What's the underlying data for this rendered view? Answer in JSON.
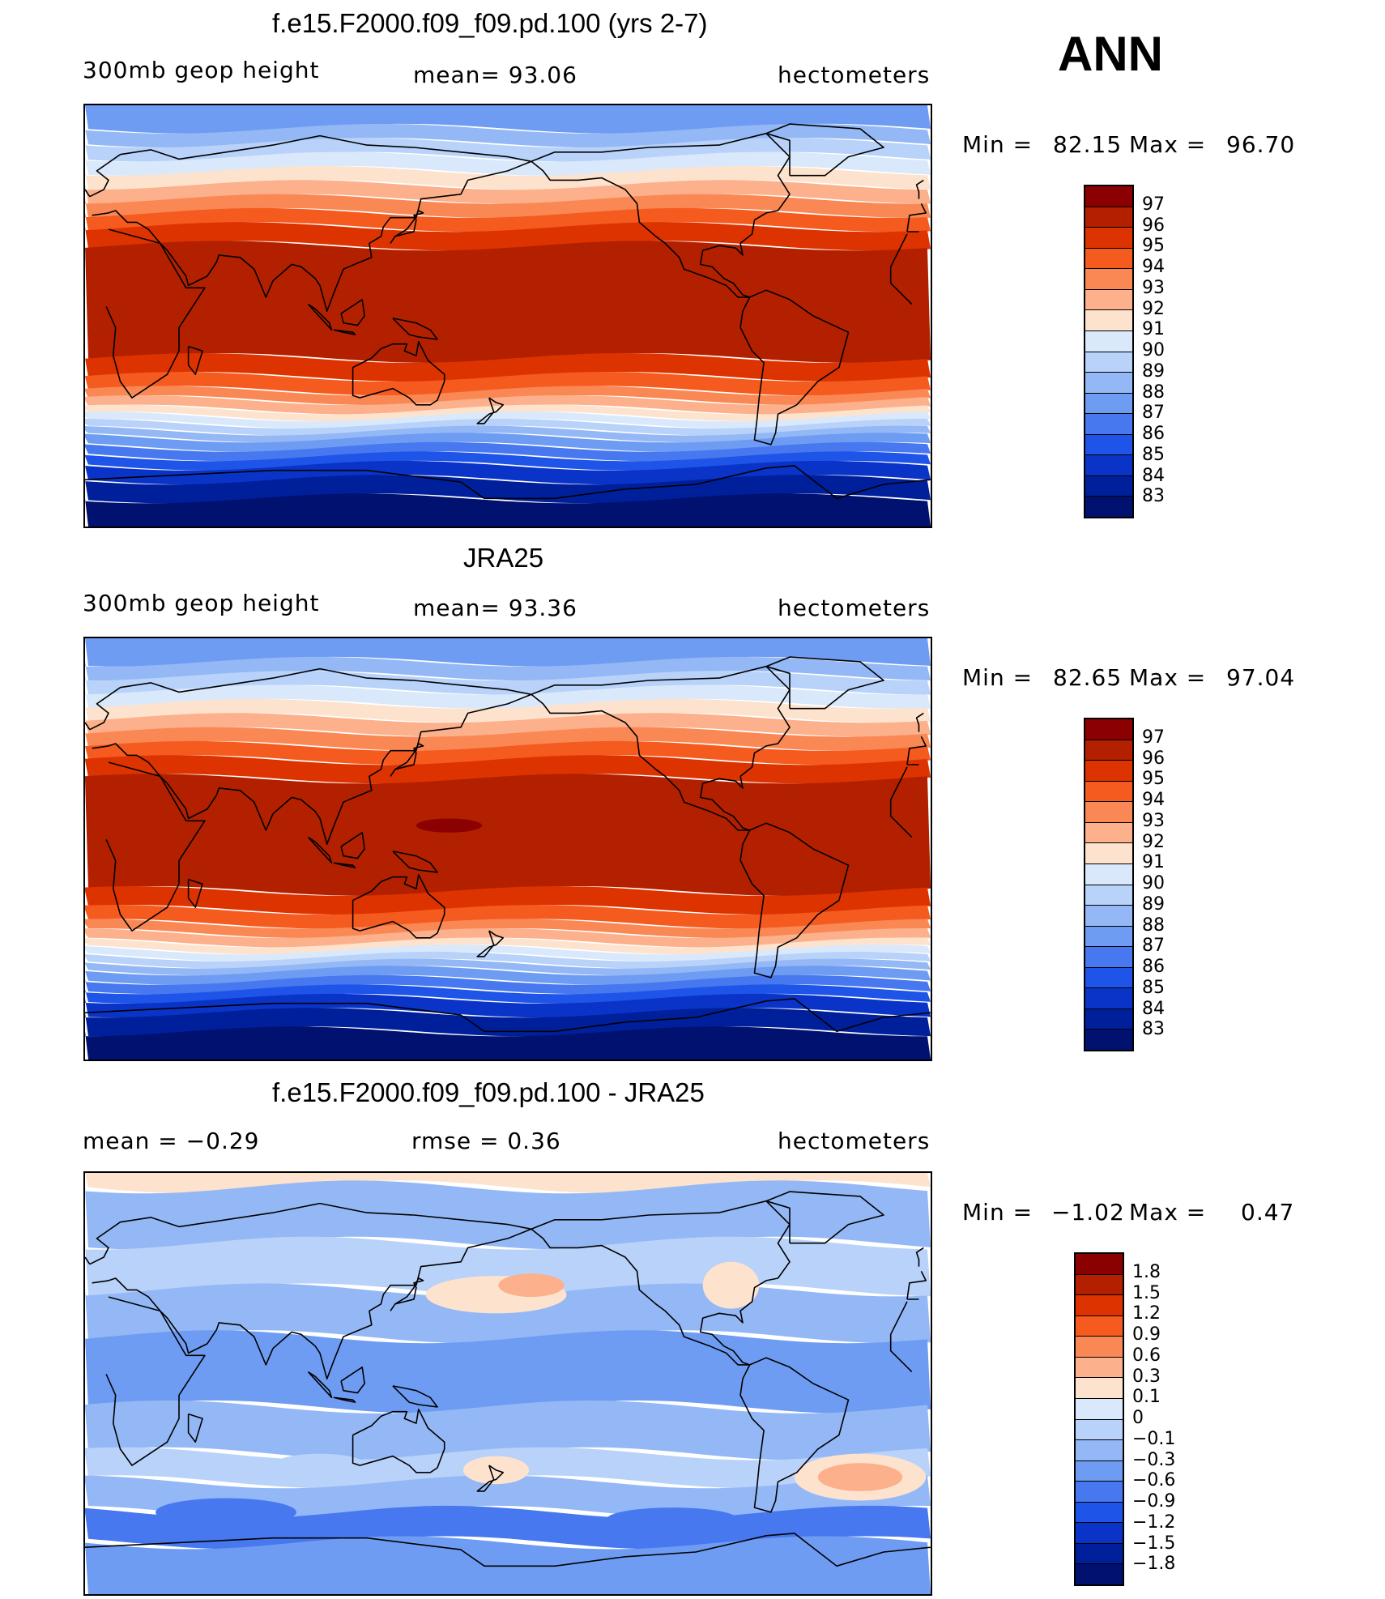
{
  "season": "ANN",
  "panels": [
    {
      "title": "f.e15.F2000.f09_f09.pd.100 (yrs 2-7)",
      "left": "300mb  geop  height",
      "center": "mean=   93.06",
      "right": "hectometers",
      "min_label": "Min  =",
      "min_value": "82.15",
      "max_label": "Max  =",
      "max_value": "96.70",
      "kind": "abs_model"
    },
    {
      "title": "JRA25",
      "left": "300mb  geop  height",
      "center": "mean=   93.36",
      "right": "hectometers",
      "min_label": "Min  =",
      "min_value": "82.65",
      "max_label": "Max  =",
      "max_value": "97.04",
      "kind": "abs_obs"
    },
    {
      "title": "f.e15.F2000.f09_f09.pd.100 - JRA25",
      "left": "mean  =    −0.29",
      "center": "rmse  =     0.36",
      "right": "hectometers",
      "min_label": "Min  =",
      "min_value": "−1.02",
      "max_label": "Max  =",
      "max_value": "0.47",
      "kind": "diff"
    }
  ],
  "colorbar_abs": {
    "colors": [
      "#8b0000",
      "#b22000",
      "#dd3300",
      "#f55a1f",
      "#fa8855",
      "#fcb08c",
      "#fde3ce",
      "#d9e9fb",
      "#b8d2fa",
      "#94b8f5",
      "#6e9cf2",
      "#4778ef",
      "#1f54e8",
      "#0a33c8",
      "#001f9a",
      "#001170"
    ],
    "labels": [
      "97",
      "96",
      "95",
      "94",
      "93",
      "92",
      "91",
      "90",
      "89",
      "88",
      "87",
      "86",
      "85",
      "84",
      "83"
    ]
  },
  "colorbar_diff": {
    "colors": [
      "#8b0000",
      "#b22000",
      "#dd3300",
      "#f55a1f",
      "#fa8855",
      "#fcb08c",
      "#fde3ce",
      "#d9e9fb",
      "#b8d2fa",
      "#94b8f5",
      "#6e9cf2",
      "#4778ef",
      "#1f54e8",
      "#0a33c8",
      "#001f9a",
      "#001170"
    ],
    "labels": [
      "1.8",
      "1.5",
      "1.2",
      "0.9",
      "0.6",
      "0.3",
      "0.1",
      "0",
      "−0.1",
      "−0.3",
      "−0.6",
      "−0.9",
      "−1.2",
      "−1.5",
      "−1.8"
    ]
  }
}
